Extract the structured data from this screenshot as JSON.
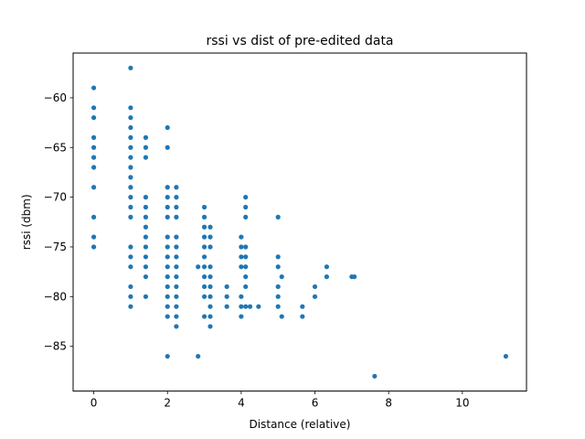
{
  "chart_data": {
    "type": "scatter",
    "title": "rssi vs dist of pre-edited data",
    "xlabel": "Distance (relative)",
    "ylabel": "rssi (dbm)",
    "xlim": [
      -0.56,
      11.74
    ],
    "ylim": [
      -89.5,
      -55.5
    ],
    "xticks": [
      0,
      2,
      4,
      6,
      8,
      10
    ],
    "yticks": [
      -85,
      -80,
      -75,
      -70,
      -65,
      -60
    ],
    "xtick_labels": [
      "0",
      "2",
      "4",
      "6",
      "8",
      "10"
    ],
    "ytick_labels": [
      "−85",
      "−80",
      "−75",
      "−70",
      "−65",
      "−60"
    ],
    "grid": false,
    "marker_color": "#1f77b4",
    "points": [
      [
        0,
        -59
      ],
      [
        0,
        -61
      ],
      [
        0,
        -62
      ],
      [
        0,
        -64
      ],
      [
        0,
        -65
      ],
      [
        0,
        -66
      ],
      [
        0,
        -67
      ],
      [
        0,
        -69
      ],
      [
        0,
        -72
      ],
      [
        0,
        -74
      ],
      [
        0,
        -75
      ],
      [
        1,
        -57
      ],
      [
        1,
        -61
      ],
      [
        1,
        -62
      ],
      [
        1,
        -63
      ],
      [
        1,
        -64
      ],
      [
        1,
        -65
      ],
      [
        1,
        -66
      ],
      [
        1,
        -67
      ],
      [
        1,
        -68
      ],
      [
        1,
        -69
      ],
      [
        1,
        -70
      ],
      [
        1,
        -71
      ],
      [
        1,
        -72
      ],
      [
        1,
        -75
      ],
      [
        1,
        -76
      ],
      [
        1,
        -77
      ],
      [
        1,
        -79
      ],
      [
        1,
        -80
      ],
      [
        1,
        -81
      ],
      [
        1.41,
        -64
      ],
      [
        1.41,
        -65
      ],
      [
        1.41,
        -66
      ],
      [
        1.41,
        -70
      ],
      [
        1.41,
        -71
      ],
      [
        1.41,
        -72
      ],
      [
        1.41,
        -73
      ],
      [
        1.41,
        -74
      ],
      [
        1.41,
        -75
      ],
      [
        1.41,
        -76
      ],
      [
        1.41,
        -77
      ],
      [
        1.41,
        -78
      ],
      [
        1.41,
        -80
      ],
      [
        2,
        -63
      ],
      [
        2,
        -65
      ],
      [
        2,
        -69
      ],
      [
        2,
        -70
      ],
      [
        2,
        -71
      ],
      [
        2,
        -72
      ],
      [
        2,
        -74
      ],
      [
        2,
        -75
      ],
      [
        2,
        -76
      ],
      [
        2,
        -77
      ],
      [
        2,
        -78
      ],
      [
        2,
        -79
      ],
      [
        2,
        -80
      ],
      [
        2,
        -81
      ],
      [
        2,
        -82
      ],
      [
        2,
        -86
      ],
      [
        2.24,
        -69
      ],
      [
        2.24,
        -70
      ],
      [
        2.24,
        -71
      ],
      [
        2.24,
        -72
      ],
      [
        2.24,
        -74
      ],
      [
        2.24,
        -75
      ],
      [
        2.24,
        -76
      ],
      [
        2.24,
        -77
      ],
      [
        2.24,
        -78
      ],
      [
        2.24,
        -79
      ],
      [
        2.24,
        -80
      ],
      [
        2.24,
        -81
      ],
      [
        2.24,
        -82
      ],
      [
        2.24,
        -83
      ],
      [
        2.83,
        -77
      ],
      [
        2.83,
        -86
      ],
      [
        3,
        -71
      ],
      [
        3,
        -72
      ],
      [
        3,
        -73
      ],
      [
        3,
        -74
      ],
      [
        3,
        -75
      ],
      [
        3,
        -76
      ],
      [
        3,
        -77
      ],
      [
        3,
        -78
      ],
      [
        3,
        -79
      ],
      [
        3,
        -80
      ],
      [
        3,
        -82
      ],
      [
        3.16,
        -73
      ],
      [
        3.16,
        -74
      ],
      [
        3.16,
        -75
      ],
      [
        3.16,
        -77
      ],
      [
        3.16,
        -78
      ],
      [
        3.16,
        -79
      ],
      [
        3.16,
        -80
      ],
      [
        3.16,
        -81
      ],
      [
        3.16,
        -82
      ],
      [
        3.16,
        -83
      ],
      [
        3.61,
        -79
      ],
      [
        3.61,
        -80
      ],
      [
        3.61,
        -81
      ],
      [
        4,
        -74
      ],
      [
        4,
        -75
      ],
      [
        4,
        -76
      ],
      [
        4,
        -77
      ],
      [
        4,
        -80
      ],
      [
        4,
        -81
      ],
      [
        4,
        -82
      ],
      [
        4.12,
        -70
      ],
      [
        4.12,
        -71
      ],
      [
        4.12,
        -72
      ],
      [
        4.12,
        -75
      ],
      [
        4.12,
        -76
      ],
      [
        4.12,
        -77
      ],
      [
        4.12,
        -78
      ],
      [
        4.12,
        -79
      ],
      [
        4.12,
        -81
      ],
      [
        4.24,
        -81
      ],
      [
        4.47,
        -81
      ],
      [
        5,
        -72
      ],
      [
        5,
        -76
      ],
      [
        5,
        -77
      ],
      [
        5,
        -79
      ],
      [
        5,
        -80
      ],
      [
        5,
        -81
      ],
      [
        5.1,
        -78
      ],
      [
        5.1,
        -82
      ],
      [
        5.66,
        -81
      ],
      [
        5.66,
        -82
      ],
      [
        6,
        -79
      ],
      [
        6,
        -80
      ],
      [
        6.32,
        -77
      ],
      [
        6.32,
        -78
      ],
      [
        7,
        -78
      ],
      [
        7.07,
        -78
      ],
      [
        7.62,
        -88
      ],
      [
        11.18,
        -86
      ]
    ]
  }
}
